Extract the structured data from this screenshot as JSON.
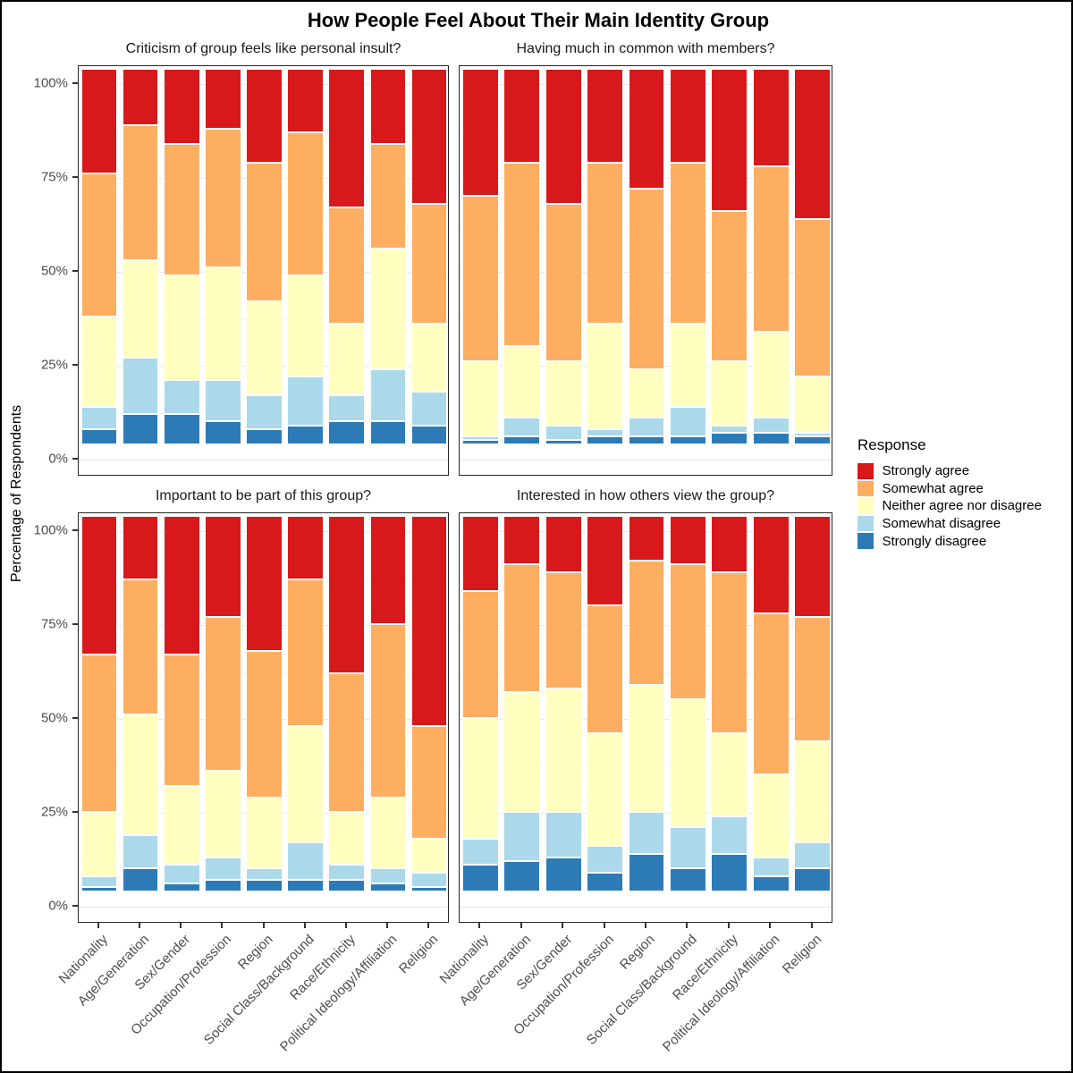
{
  "title": "How People Feel About Their Main Identity Group",
  "y_axis": {
    "title": "Percentage of Respondents",
    "ticks": [
      "0%",
      "25%",
      "50%",
      "75%",
      "100%"
    ]
  },
  "legend": {
    "title": "Response",
    "items": [
      {
        "label": "Strongly agree",
        "color": "#D7191C"
      },
      {
        "label": "Somewhat agree",
        "color": "#FDAE61"
      },
      {
        "label": "Neither agree nor disagree",
        "color": "#FFFFBF"
      },
      {
        "label": "Somewhat disagree",
        "color": "#ABD9E9"
      },
      {
        "label": "Strongly disagree",
        "color": "#2C7BB6"
      }
    ]
  },
  "chart_data": [
    {
      "type": "bar",
      "stacked": true,
      "title": "Criticism of group feels like personal insult?",
      "categories": [
        "Nationality",
        "Age/Generation",
        "Sex/Gender",
        "Occupation/Profession",
        "Region",
        "Social Class/Background",
        "Race/Ethnicity",
        "Political Ideology/Affiliation",
        "Religion"
      ],
      "series": [
        {
          "name": "Strongly disagree",
          "color": "#2C7BB6",
          "values": [
            4,
            8,
            8,
            6,
            4,
            5,
            6,
            6,
            5
          ]
        },
        {
          "name": "Somewhat disagree",
          "color": "#ABD9E9",
          "values": [
            6,
            15,
            9,
            11,
            9,
            13,
            7,
            14,
            9
          ]
        },
        {
          "name": "Neither agree nor disagree",
          "color": "#FFFFBF",
          "values": [
            24,
            26,
            28,
            30,
            25,
            27,
            19,
            32,
            18
          ]
        },
        {
          "name": "Somewhat agree",
          "color": "#FDAE61",
          "values": [
            38,
            36,
            35,
            37,
            37,
            38,
            31,
            28,
            32
          ]
        },
        {
          "name": "Strongly agree",
          "color": "#D7191C",
          "values": [
            28,
            15,
            20,
            16,
            25,
            17,
            37,
            20,
            36
          ]
        }
      ],
      "ylabel": "Percentage of Respondents",
      "ylim": [
        0,
        100
      ],
      "grid": true,
      "legend_position": "right"
    },
    {
      "type": "bar",
      "stacked": true,
      "title": "Having much in common with members?",
      "categories": [
        "Nationality",
        "Age/Generation",
        "Sex/Gender",
        "Occupation/Profession",
        "Region",
        "Social Class/Background",
        "Race/Ethnicity",
        "Political Ideology/Affiliation",
        "Religion"
      ],
      "series": [
        {
          "name": "Strongly disagree",
          "color": "#2C7BB6",
          "values": [
            1,
            2,
            1,
            2,
            2,
            2,
            3,
            3,
            2
          ]
        },
        {
          "name": "Somewhat disagree",
          "color": "#ABD9E9",
          "values": [
            1,
            5,
            4,
            2,
            5,
            8,
            2,
            4,
            1
          ]
        },
        {
          "name": "Neither agree nor disagree",
          "color": "#FFFFBF",
          "values": [
            20,
            19,
            17,
            28,
            13,
            22,
            17,
            23,
            15
          ]
        },
        {
          "name": "Somewhat agree",
          "color": "#FDAE61",
          "values": [
            44,
            49,
            42,
            43,
            48,
            43,
            40,
            44,
            42
          ]
        },
        {
          "name": "Strongly agree",
          "color": "#D7191C",
          "values": [
            34,
            25,
            36,
            25,
            32,
            25,
            38,
            26,
            40
          ]
        }
      ],
      "ylabel": "Percentage of Respondents",
      "ylim": [
        0,
        100
      ],
      "grid": true,
      "legend_position": "right"
    },
    {
      "type": "bar",
      "stacked": true,
      "title": "Important to be part of this group?",
      "categories": [
        "Nationality",
        "Age/Generation",
        "Sex/Gender",
        "Occupation/Profession",
        "Region",
        "Social Class/Background",
        "Race/Ethnicity",
        "Political Ideology/Affiliation",
        "Religion"
      ],
      "series": [
        {
          "name": "Strongly disagree",
          "color": "#2C7BB6",
          "values": [
            1,
            6,
            2,
            3,
            3,
            3,
            3,
            2,
            1
          ]
        },
        {
          "name": "Somewhat disagree",
          "color": "#ABD9E9",
          "values": [
            3,
            9,
            5,
            6,
            3,
            10,
            4,
            4,
            4
          ]
        },
        {
          "name": "Neither agree nor disagree",
          "color": "#FFFFBF",
          "values": [
            17,
            32,
            21,
            23,
            19,
            31,
            14,
            19,
            9
          ]
        },
        {
          "name": "Somewhat agree",
          "color": "#FDAE61",
          "values": [
            42,
            36,
            35,
            41,
            39,
            39,
            37,
            46,
            30
          ]
        },
        {
          "name": "Strongly agree",
          "color": "#D7191C",
          "values": [
            37,
            17,
            37,
            27,
            36,
            17,
            42,
            29,
            56
          ]
        }
      ],
      "ylabel": "Percentage of Respondents",
      "ylim": [
        0,
        100
      ],
      "grid": true,
      "legend_position": "right"
    },
    {
      "type": "bar",
      "stacked": true,
      "title": "Interested in how others view the group?",
      "categories": [
        "Nationality",
        "Age/Generation",
        "Sex/Gender",
        "Occupation/Profession",
        "Region",
        "Social Class/Background",
        "Race/Ethnicity",
        "Political Ideology/Affiliation",
        "Religion"
      ],
      "series": [
        {
          "name": "Strongly disagree",
          "color": "#2C7BB6",
          "values": [
            7,
            8,
            9,
            5,
            10,
            6,
            10,
            4,
            6
          ]
        },
        {
          "name": "Somewhat disagree",
          "color": "#ABD9E9",
          "values": [
            7,
            13,
            12,
            7,
            11,
            11,
            10,
            5,
            7
          ]
        },
        {
          "name": "Neither agree nor disagree",
          "color": "#FFFFBF",
          "values": [
            32,
            32,
            33,
            30,
            34,
            34,
            22,
            22,
            27
          ]
        },
        {
          "name": "Somewhat agree",
          "color": "#FDAE61",
          "values": [
            34,
            34,
            31,
            34,
            33,
            36,
            43,
            43,
            33
          ]
        },
        {
          "name": "Strongly agree",
          "color": "#D7191C",
          "values": [
            20,
            13,
            15,
            24,
            12,
            13,
            15,
            26,
            27
          ]
        }
      ],
      "ylabel": "Percentage of Respondents",
      "ylim": [
        0,
        100
      ],
      "grid": true,
      "legend_position": "right"
    }
  ]
}
